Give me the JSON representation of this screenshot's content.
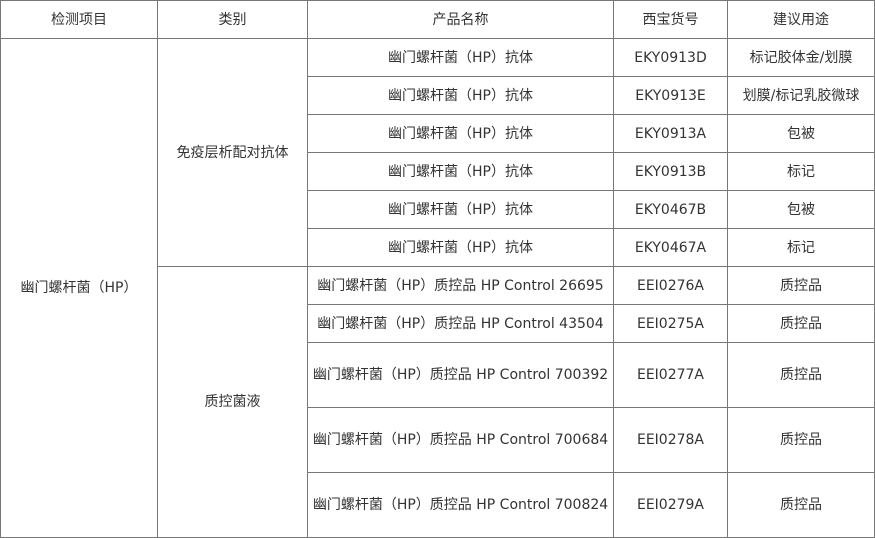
{
  "headers": [
    "检测项目",
    "类别",
    "产品名称",
    "西宝货号",
    "建议用途"
  ],
  "detection_item": "幽门螺杆菌（HP）",
  "groups": [
    {
      "category": "免疫层析配对抗体",
      "rows": [
        {
          "name": "幽门螺杆菌（HP）抗体",
          "code": "EKY0913D",
          "use": "标记胶体金/划膜"
        },
        {
          "name": "幽门螺杆菌（HP）抗体",
          "code": "EKY0913E",
          "use": "划膜/标记乳胶微球"
        },
        {
          "name": "幽门螺杆菌（HP）抗体",
          "code": "EKY0913A",
          "use": "包被"
        },
        {
          "name": "幽门螺杆菌（HP）抗体",
          "code": "EKY0913B",
          "use": "标记"
        },
        {
          "name": "幽门螺杆菌（HP）抗体",
          "code": "EKY0467B",
          "use": "包被"
        },
        {
          "name": "幽门螺杆菌（HP）抗体",
          "code": "EKY0467A",
          "use": "标记"
        }
      ]
    },
    {
      "category": "质控菌液",
      "rows": [
        {
          "name": "幽门螺杆菌（HP）质控品 HP Control 26695",
          "code": "EEI0276A",
          "use": "质控品"
        },
        {
          "name": "幽门螺杆菌（HP）质控品 HP Control 43504",
          "code": "EEI0275A",
          "use": "质控品"
        },
        {
          "name": "幽门螺杆菌（HP）质控品 HP Control 700392",
          "code": "EEI0277A",
          "use": "质控品"
        },
        {
          "name": "幽门螺杆菌（HP）质控品 HP Control 700684",
          "code": "EEI0278A",
          "use": "质控品"
        },
        {
          "name": "幽门螺杆菌（HP）质控品 HP Control 700824",
          "code": "EEI0279A",
          "use": "质控品"
        }
      ]
    }
  ]
}
